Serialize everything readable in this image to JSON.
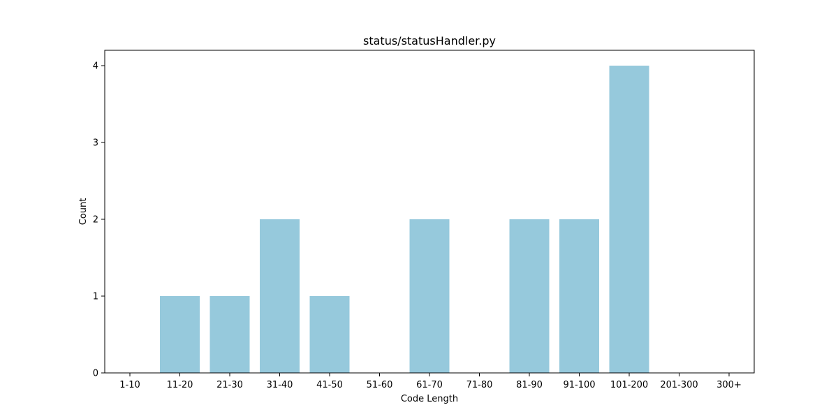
{
  "chart_data": {
    "type": "bar",
    "title": "status/statusHandler.py",
    "xlabel": "Code Length",
    "ylabel": "Count",
    "categories": [
      "1-10",
      "11-20",
      "21-30",
      "31-40",
      "41-50",
      "51-60",
      "61-70",
      "71-80",
      "81-90",
      "91-100",
      "101-200",
      "201-300",
      "300+"
    ],
    "values": [
      0,
      1,
      1,
      2,
      1,
      0,
      2,
      0,
      2,
      2,
      4,
      0,
      0
    ],
    "yticks": [
      "0",
      "1",
      "2",
      "3",
      "4"
    ],
    "ylim": [
      0,
      4.2
    ],
    "bar_color": "#96c9dc",
    "grid": false,
    "legend": "none"
  }
}
